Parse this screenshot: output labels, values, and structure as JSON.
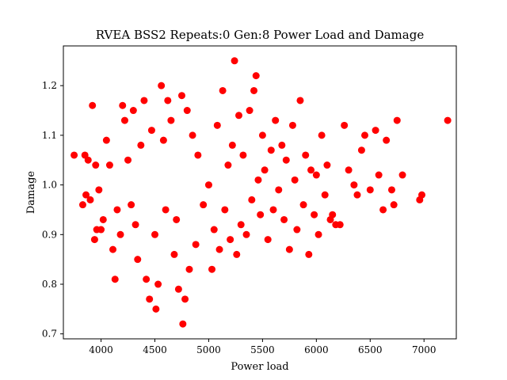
{
  "chart_data": {
    "type": "scatter",
    "title": "RVEA BSS2 Repeats:0 Gen:8 Power Load and Damage",
    "xlabel": "Power load",
    "ylabel": "Damage",
    "xlim": [
      3650,
      7300
    ],
    "ylim": [
      0.69,
      1.28
    ],
    "xticks": [
      4000,
      4500,
      5000,
      5500,
      6000,
      6500,
      7000
    ],
    "yticks": [
      0.7,
      0.8,
      0.9,
      1.0,
      1.1,
      1.2
    ],
    "xtick_labels": [
      "4000",
      "4500",
      "5000",
      "5500",
      "6000",
      "6500",
      "7000"
    ],
    "ytick_labels": [
      "0.7",
      "0.8",
      "0.9",
      "1.0",
      "1.1",
      "1.2"
    ],
    "grid": false,
    "marker_color": "#ff0000",
    "series": [
      {
        "points": [
          [
            3750,
            1.06
          ],
          [
            3850,
            1.06
          ],
          [
            3880,
            1.05
          ],
          [
            3920,
            1.16
          ],
          [
            3950,
            1.04
          ],
          [
            3860,
            0.98
          ],
          [
            3830,
            0.96
          ],
          [
            3900,
            0.97
          ],
          [
            3960,
            0.91
          ],
          [
            3940,
            0.89
          ],
          [
            3980,
            0.99
          ],
          [
            4000,
            0.91
          ],
          [
            4020,
            0.93
          ],
          [
            4050,
            1.09
          ],
          [
            4080,
            1.04
          ],
          [
            4110,
            0.87
          ],
          [
            4130,
            0.81
          ],
          [
            4150,
            0.95
          ],
          [
            4180,
            0.9
          ],
          [
            4200,
            1.16
          ],
          [
            4220,
            1.13
          ],
          [
            4250,
            1.05
          ],
          [
            4280,
            0.96
          ],
          [
            4300,
            1.15
          ],
          [
            4320,
            0.92
          ],
          [
            4340,
            0.85
          ],
          [
            4370,
            1.08
          ],
          [
            4400,
            1.17
          ],
          [
            4420,
            0.81
          ],
          [
            4450,
            0.77
          ],
          [
            4470,
            1.11
          ],
          [
            4500,
            0.9
          ],
          [
            4510,
            0.75
          ],
          [
            4530,
            0.8
          ],
          [
            4560,
            1.2
          ],
          [
            4580,
            1.09
          ],
          [
            4600,
            0.95
          ],
          [
            4620,
            1.17
          ],
          [
            4650,
            1.13
          ],
          [
            4680,
            0.86
          ],
          [
            4700,
            0.93
          ],
          [
            4720,
            0.79
          ],
          [
            4750,
            1.18
          ],
          [
            4760,
            0.72
          ],
          [
            4780,
            0.77
          ],
          [
            4800,
            1.15
          ],
          [
            4820,
            0.83
          ],
          [
            4850,
            1.1
          ],
          [
            4880,
            0.88
          ],
          [
            4900,
            1.06
          ],
          [
            4950,
            0.96
          ],
          [
            5000,
            1.0
          ],
          [
            5030,
            0.83
          ],
          [
            5050,
            0.91
          ],
          [
            5080,
            1.12
          ],
          [
            5100,
            0.87
          ],
          [
            5130,
            1.19
          ],
          [
            5150,
            0.95
          ],
          [
            5180,
            1.04
          ],
          [
            5200,
            0.89
          ],
          [
            5220,
            1.08
          ],
          [
            5240,
            1.25
          ],
          [
            5260,
            0.86
          ],
          [
            5280,
            1.14
          ],
          [
            5300,
            0.92
          ],
          [
            5320,
            1.06
          ],
          [
            5350,
            0.9
          ],
          [
            5380,
            1.15
          ],
          [
            5400,
            0.97
          ],
          [
            5420,
            1.19
          ],
          [
            5440,
            1.22
          ],
          [
            5460,
            1.01
          ],
          [
            5480,
            0.94
          ],
          [
            5500,
            1.1
          ],
          [
            5520,
            1.03
          ],
          [
            5550,
            0.89
          ],
          [
            5580,
            1.07
          ],
          [
            5600,
            0.95
          ],
          [
            5620,
            1.13
          ],
          [
            5650,
            0.99
          ],
          [
            5680,
            1.08
          ],
          [
            5700,
            0.93
          ],
          [
            5720,
            1.05
          ],
          [
            5750,
            0.87
          ],
          [
            5780,
            1.12
          ],
          [
            5800,
            1.01
          ],
          [
            5820,
            0.91
          ],
          [
            5850,
            1.17
          ],
          [
            5880,
            0.96
          ],
          [
            5900,
            1.06
          ],
          [
            5930,
            0.86
          ],
          [
            5950,
            1.03
          ],
          [
            5980,
            0.94
          ],
          [
            6000,
            1.02
          ],
          [
            6020,
            0.9
          ],
          [
            6050,
            1.1
          ],
          [
            6080,
            0.98
          ],
          [
            6100,
            1.04
          ],
          [
            6130,
            0.93
          ],
          [
            6150,
            0.94
          ],
          [
            6180,
            0.92
          ],
          [
            6220,
            0.92
          ],
          [
            6260,
            1.12
          ],
          [
            6300,
            1.03
          ],
          [
            6350,
            1.0
          ],
          [
            6380,
            0.98
          ],
          [
            6420,
            1.07
          ],
          [
            6450,
            1.1
          ],
          [
            6500,
            0.99
          ],
          [
            6550,
            1.11
          ],
          [
            6580,
            1.02
          ],
          [
            6620,
            0.95
          ],
          [
            6650,
            1.09
          ],
          [
            6700,
            0.99
          ],
          [
            6720,
            0.96
          ],
          [
            6750,
            1.13
          ],
          [
            6800,
            1.02
          ],
          [
            6960,
            0.97
          ],
          [
            6980,
            0.98
          ],
          [
            7220,
            1.13
          ]
        ]
      }
    ]
  }
}
